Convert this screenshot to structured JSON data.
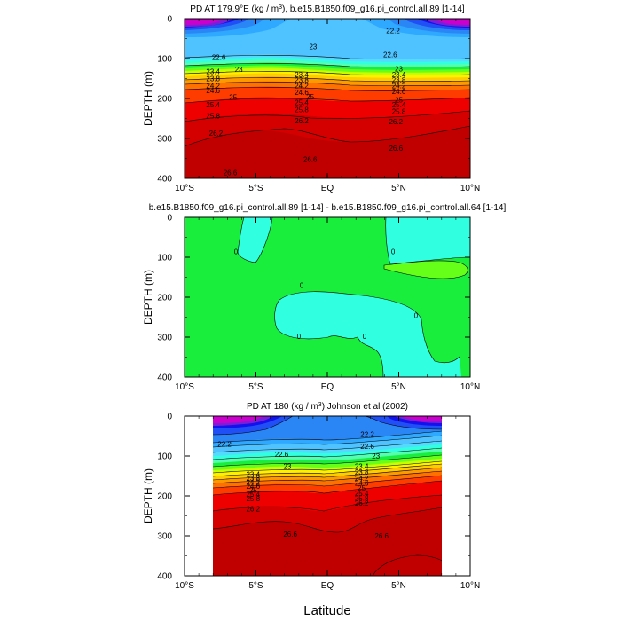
{
  "chart_data": {
    "type": "contour",
    "xlabel": "Latitude",
    "colors": {
      "magenta": "#cc00cc",
      "violet": "#7a1fd6",
      "deep_blue": "#1212ee",
      "blue": "#1f4ff5",
      "mid_blue": "#2b86f5",
      "sky_blue": "#2fa8ff",
      "light_blue": "#4ec3ff",
      "cyan_blue": "#55d9ff",
      "cyan": "#30ffe0",
      "mint": "#55ffb0",
      "green": "#19ee3c",
      "light_green": "#66ff1a",
      "yellow_green": "#c8ff00",
      "yellow": "#fff000",
      "yellow_orange": "#ffcc00",
      "orange": "#ff9900",
      "dark_orange": "#ff7000",
      "red_orange": "#ff3c00",
      "red": "#ee0000",
      "dark_red": "#d40000",
      "deep_red": "#c00000"
    },
    "panels": [
      {
        "id": "model",
        "title_parts": [
          "PD AT 179.9°E (kg / m",
          "3",
          "), b.e15.B1850.f09_g16.pi_control.all.89 [1-14]"
        ],
        "ylabel": "DEPTH (m)",
        "xticks": [
          "10°S",
          "5°S",
          "EQ",
          "5°N",
          "10°N"
        ],
        "yticks": [
          "0",
          "100",
          "200",
          "300",
          "400"
        ],
        "ylim": [
          400,
          0
        ],
        "xlim": [
          -10,
          10
        ],
        "x_coverage": [
          -10,
          10
        ],
        "contour_labels": [
          {
            "text": "23",
            "x": -1.0,
            "y": 70
          },
          {
            "text": "22.6",
            "x": -7.6,
            "y": 97
          },
          {
            "text": "23",
            "x": -6.2,
            "y": 127
          },
          {
            "text": "23.4",
            "x": -8.0,
            "y": 132
          },
          {
            "text": "23.8",
            "x": -8.0,
            "y": 150
          },
          {
            "text": "24.2",
            "x": -8.0,
            "y": 168
          },
          {
            "text": "24.6",
            "x": -8.0,
            "y": 180
          },
          {
            "text": "25",
            "x": -6.6,
            "y": 197
          },
          {
            "text": "25.4",
            "x": -8.0,
            "y": 215
          },
          {
            "text": "25.8",
            "x": -8.0,
            "y": 243
          },
          {
            "text": "26.2",
            "x": -7.8,
            "y": 287
          },
          {
            "text": "26.6",
            "x": -6.8,
            "y": 385
          },
          {
            "text": "23.4",
            "x": -1.8,
            "y": 140
          },
          {
            "text": "23.8",
            "x": -1.8,
            "y": 153
          },
          {
            "text": "24.2",
            "x": -1.8,
            "y": 168
          },
          {
            "text": "24.6",
            "x": -1.8,
            "y": 184
          },
          {
            "text": "25",
            "x": -1.2,
            "y": 195
          },
          {
            "text": "25.4",
            "x": -1.8,
            "y": 210
          },
          {
            "text": "25.8",
            "x": -1.8,
            "y": 228
          },
          {
            "text": "26.2",
            "x": -1.8,
            "y": 256
          },
          {
            "text": "26.6",
            "x": -1.2,
            "y": 352
          },
          {
            "text": "22.6",
            "x": 4.4,
            "y": 90
          },
          {
            "text": "23",
            "x": 5.0,
            "y": 125
          },
          {
            "text": "23.4",
            "x": 5.0,
            "y": 140
          },
          {
            "text": "23.8",
            "x": 5.0,
            "y": 153
          },
          {
            "text": "24.2",
            "x": 5.0,
            "y": 168
          },
          {
            "text": "24.6",
            "x": 5.0,
            "y": 182
          },
          {
            "text": "25",
            "x": 5.0,
            "y": 203
          },
          {
            "text": "25.4",
            "x": 5.0,
            "y": 215
          },
          {
            "text": "25.8",
            "x": 5.0,
            "y": 232
          },
          {
            "text": "26.2",
            "x": 4.8,
            "y": 258
          },
          {
            "text": "26.6",
            "x": 4.8,
            "y": 324
          },
          {
            "text": "22.2",
            "x": 4.6,
            "y": 30
          }
        ]
      },
      {
        "id": "difference",
        "title_parts": [
          "b.e15.B1850.f09_g16.pi_control.all.89 [1-14] - b.e15.B1850.f09_g16.pi_control.all.64 [1-14]"
        ],
        "ylabel": "DEPTH (m)",
        "xticks": [
          "10°S",
          "5°S",
          "EQ",
          "5°N",
          "10°N"
        ],
        "yticks": [
          "0",
          "100",
          "200",
          "300",
          "400"
        ],
        "ylim": [
          400,
          0
        ],
        "xlim": [
          -10,
          10
        ],
        "x_coverage": [
          -10,
          10
        ],
        "contour_labels": [
          {
            "text": "0",
            "x": -6.4,
            "y": 85
          },
          {
            "text": "0",
            "x": 4.6,
            "y": 85
          },
          {
            "text": "0",
            "x": -1.8,
            "y": 170
          },
          {
            "text": "0",
            "x": 6.2,
            "y": 245
          },
          {
            "text": "0",
            "x": -2.0,
            "y": 298
          },
          {
            "text": "0",
            "x": 2.6,
            "y": 298
          }
        ]
      },
      {
        "id": "observations",
        "title_parts": [
          "PD AT 180 (kg / m",
          "3",
          ") Johnson et al (2002)"
        ],
        "ylabel": "DEPTH (m)",
        "xticks": [
          "10°S",
          "5°S",
          "EQ",
          "5°N",
          "10°N"
        ],
        "yticks": [
          "0",
          "100",
          "200",
          "300",
          "400"
        ],
        "ylim": [
          400,
          0
        ],
        "xlim": [
          -10,
          10
        ],
        "x_coverage": [
          -8,
          8
        ],
        "contour_labels": [
          {
            "text": "22.2",
            "x": -7.2,
            "y": 70
          },
          {
            "text": "22.6",
            "x": -3.2,
            "y": 95
          },
          {
            "text": "23",
            "x": -2.8,
            "y": 125
          },
          {
            "text": "22.2",
            "x": 2.8,
            "y": 45
          },
          {
            "text": "22.6",
            "x": 2.8,
            "y": 75
          },
          {
            "text": "23",
            "x": 3.4,
            "y": 100
          },
          {
            "text": "23.4",
            "x": 2.4,
            "y": 125
          },
          {
            "text": "23.8",
            "x": 2.4,
            "y": 140
          },
          {
            "text": "24.2",
            "x": 2.4,
            "y": 155
          },
          {
            "text": "24.6",
            "x": 2.4,
            "y": 168
          },
          {
            "text": "25",
            "x": 2.4,
            "y": 180
          },
          {
            "text": "25.4",
            "x": 2.4,
            "y": 193
          },
          {
            "text": "25.8",
            "x": 2.4,
            "y": 205
          },
          {
            "text": "26.2",
            "x": 2.4,
            "y": 218
          },
          {
            "text": "23.4",
            "x": -5.2,
            "y": 145
          },
          {
            "text": "23.8",
            "x": -5.2,
            "y": 155
          },
          {
            "text": "24.2",
            "x": -5.2,
            "y": 165
          },
          {
            "text": "24.6",
            "x": -5.2,
            "y": 175
          },
          {
            "text": "25",
            "x": -5.2,
            "y": 185
          },
          {
            "text": "25.4",
            "x": -5.2,
            "y": 196
          },
          {
            "text": "25.8",
            "x": -5.2,
            "y": 207
          },
          {
            "text": "26.2",
            "x": -5.2,
            "y": 232
          },
          {
            "text": "26.6",
            "x": -2.6,
            "y": 295
          },
          {
            "text": "26.6",
            "x": 3.8,
            "y": 300
          }
        ]
      }
    ]
  }
}
